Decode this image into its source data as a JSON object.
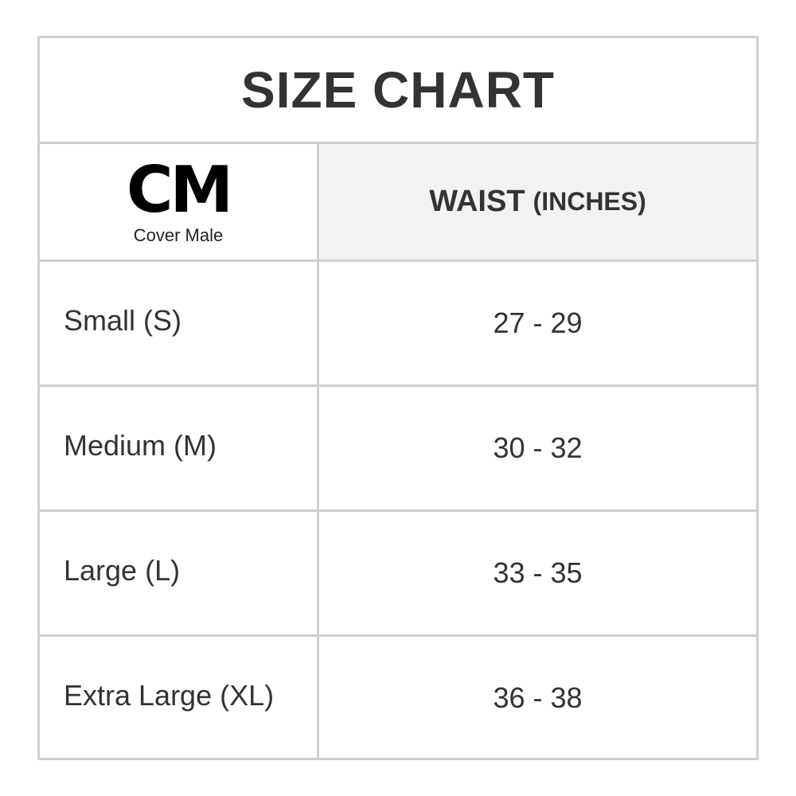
{
  "title": "SIZE CHART",
  "brand": {
    "mark": "CM",
    "name": "Cover Male"
  },
  "header": {
    "measure": "WAIST",
    "unit": "(INCHES)"
  },
  "rows": [
    {
      "size": "Small (S)",
      "waist": "27 - 29"
    },
    {
      "size": "Medium (M)",
      "waist": "30 - 32"
    },
    {
      "size": "Large (L)",
      "waist": "33 - 35"
    },
    {
      "size": "Extra Large (XL)",
      "waist": "36 - 38"
    }
  ],
  "colors": {
    "border": "#cfcfcf",
    "header_bg": "#f2f2f2",
    "text": "#333333"
  }
}
